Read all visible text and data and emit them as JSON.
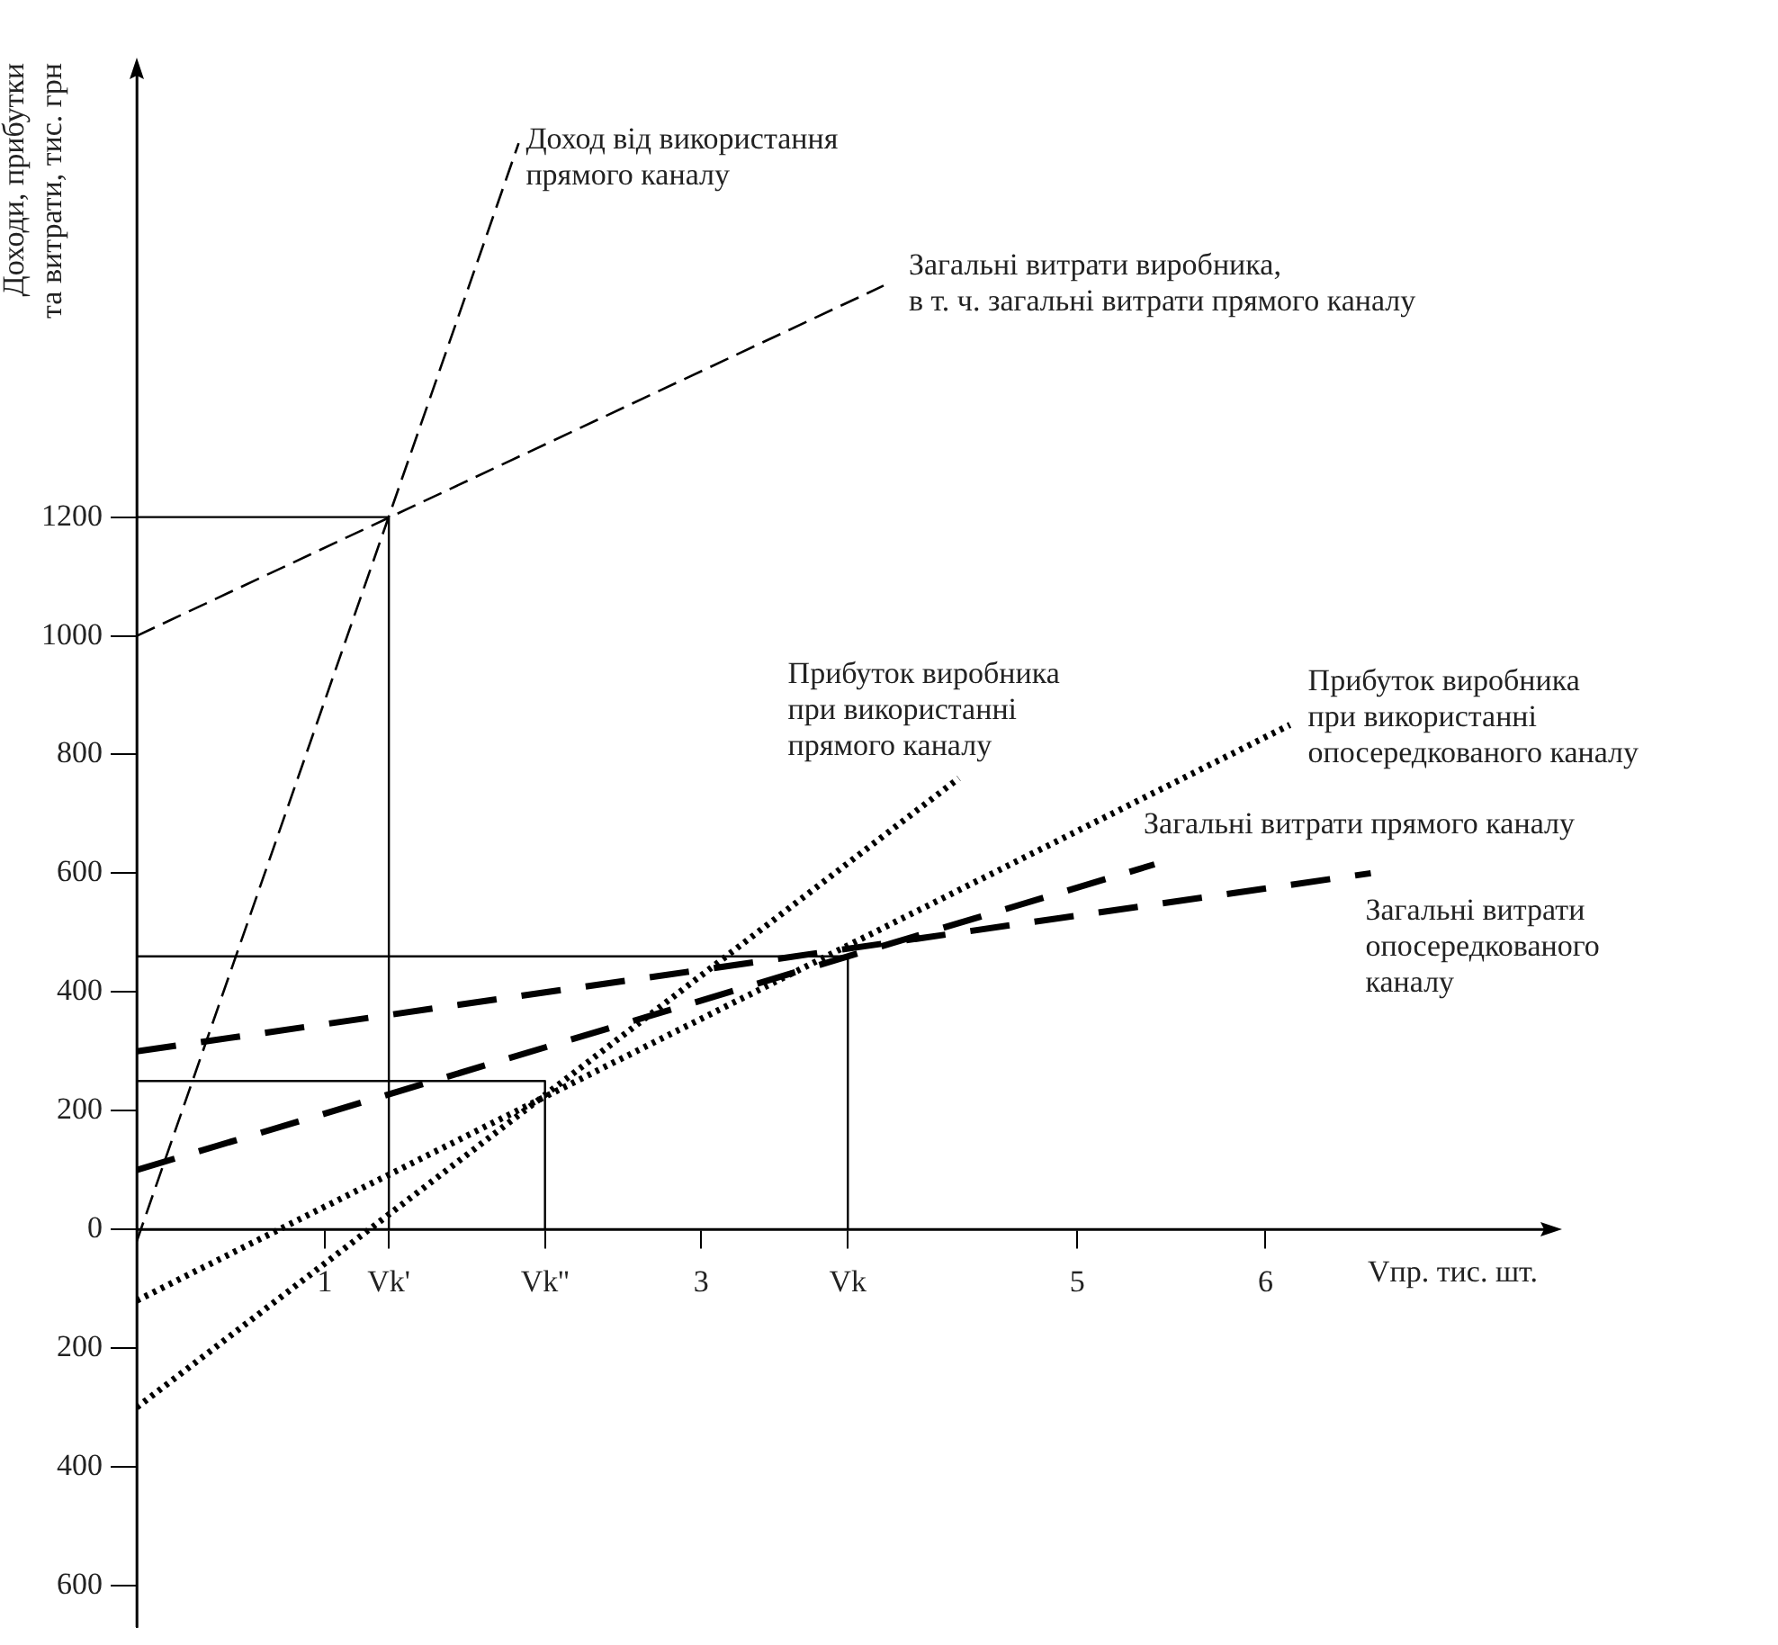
{
  "chart_data": {
    "type": "line",
    "xlabel": "Vпр. тис. шт.",
    "ylabel": "Доходи, прибутки\nта витрати, тис. грн",
    "xlim": [
      0,
      7.5
    ],
    "ylim": [
      -670,
      1950
    ],
    "xticks": [
      1,
      {
        "value": 1.34,
        "label": "Vk'"
      },
      {
        "value": 2.17,
        "label": "Vk''"
      },
      3,
      {
        "value": 3.78,
        "label": "Vk"
      },
      5,
      6
    ],
    "yticks": [
      {
        "value": -600,
        "label": "600"
      },
      {
        "value": -400,
        "label": "400"
      },
      {
        "value": -200,
        "label": "200"
      },
      0,
      200,
      400,
      600,
      800,
      1000,
      1200
    ],
    "grid": false,
    "legend": false,
    "marker": "none",
    "series": [
      {
        "name": "Доход від використання\nпрямого каналу",
        "color": "#000000",
        "line_style": "dashed",
        "x": [
          0,
          2.03
        ],
        "values": [
          -20,
          1830
        ]
      },
      {
        "name": "Загальні витрати виробника,\nв т. ч. загальні витрати прямого каналу",
        "color": "#000000",
        "line_style": "dashed",
        "x": [
          0,
          3.97
        ],
        "values": [
          1000,
          1590
        ]
      },
      {
        "name": "Загальні витрати\nопосередкованого\nканалу",
        "color": "#000000",
        "line_style": "dashed",
        "x": [
          0,
          6.56
        ],
        "values": [
          300,
          600
        ]
      },
      {
        "name": "Загальні витрати прямого каналу",
        "color": "#000000",
        "line_style": "dashed",
        "x": [
          0,
          5.41
        ],
        "values": [
          100,
          615
        ]
      },
      {
        "name": "Прибуток виробника\nпри використанні\nпрямого каналу",
        "color": "#000000",
        "line_style": "dotted",
        "x": [
          0,
          4.37
        ],
        "values": [
          -300,
          760
        ]
      },
      {
        "name": "Прибуток виробника\nпри використанні\nопосередкованого каналу",
        "color": "#000000",
        "line_style": "dotted",
        "x": [
          0,
          6.13
        ],
        "values": [
          -120,
          850
        ]
      },
      {
        "color": "#000000",
        "line_style": "solid",
        "x": [
          0,
          1.34,
          1.34
        ],
        "values": [
          1200,
          1200,
          0
        ]
      },
      {
        "color": "#000000",
        "line_style": "solid",
        "x": [
          0,
          3.78,
          3.78
        ],
        "values": [
          460,
          460,
          0
        ]
      },
      {
        "color": "#000000",
        "line_style": "solid",
        "x": [
          0,
          2.17,
          2.17
        ],
        "values": [
          250,
          250,
          0
        ]
      }
    ]
  }
}
